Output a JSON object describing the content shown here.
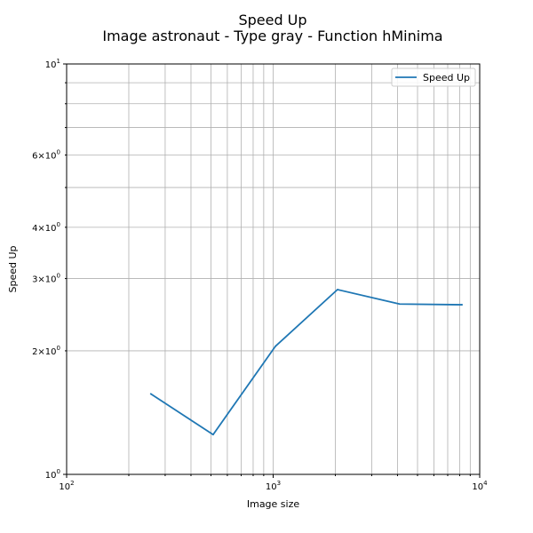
{
  "chart_data": {
    "type": "line",
    "title": "Speed Up",
    "subtitle": "Image astronaut - Type gray - Function hMinima",
    "xlabel": "Image size",
    "ylabel": "Speed Up",
    "xscale": "log",
    "yscale": "log",
    "xlim": [
      100,
      10000
    ],
    "ylim": [
      1,
      10
    ],
    "grid": "both major and minor",
    "legend_position": "top-right",
    "x_tick_labels": [
      {
        "value": 100,
        "base": "10",
        "exp": "2"
      },
      {
        "value": 1000,
        "base": "10",
        "exp": "3"
      },
      {
        "value": 10000,
        "base": "10",
        "exp": "4"
      }
    ],
    "y_tick_labels": [
      {
        "value": 1,
        "base": "10",
        "exp": "0",
        "mantissa": ""
      },
      {
        "value": 2,
        "base": "10",
        "exp": "0",
        "mantissa": "2×"
      },
      {
        "value": 3,
        "base": "10",
        "exp": "0",
        "mantissa": "3×"
      },
      {
        "value": 4,
        "base": "10",
        "exp": "0",
        "mantissa": "4×"
      },
      {
        "value": 6,
        "base": "10",
        "exp": "0",
        "mantissa": "6×"
      },
      {
        "value": 10,
        "base": "10",
        "exp": "1",
        "mantissa": ""
      }
    ],
    "series": [
      {
        "name": "Speed Up",
        "color": "#1f77b4",
        "x": [
          256,
          512,
          1024,
          2048,
          4096,
          8192
        ],
        "y": [
          1.57,
          1.25,
          2.05,
          2.82,
          2.6,
          2.59
        ]
      }
    ]
  }
}
